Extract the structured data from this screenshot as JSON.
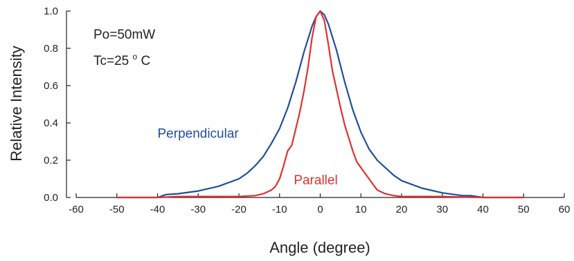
{
  "chart_data": {
    "type": "line",
    "title": "",
    "xlabel": "Angle (degree)",
    "ylabel": "Relative Intensity",
    "xlim": [
      -60,
      60
    ],
    "ylim": [
      0,
      1.0
    ],
    "xticks": [
      -60,
      -50,
      -40,
      -30,
      -20,
      -10,
      0,
      10,
      20,
      30,
      40,
      50,
      60
    ],
    "yticks": [
      "0.0",
      "0.2",
      "0.4",
      "0.6",
      "0.8",
      "1.0"
    ],
    "grid": false,
    "legend": "none",
    "annotations": {
      "power": "Po=50mW",
      "temp_prefix": "Tc=25",
      "temp_degree": "o",
      "temp_unit": "C"
    },
    "series": [
      {
        "name": "Perpendicular",
        "color": "#1f4e9c",
        "x": [
          -50,
          -45,
          -40,
          -38,
          -35,
          -30,
          -25,
          -20,
          -18,
          -16,
          -14,
          -12,
          -10,
          -8,
          -6,
          -4,
          -2,
          -1,
          0,
          1,
          2,
          4,
          6,
          8,
          10,
          12,
          14,
          16,
          18,
          20,
          25,
          30,
          35,
          37,
          40,
          45,
          50
        ],
        "y": [
          0.0,
          0.0,
          0.0,
          0.015,
          0.02,
          0.035,
          0.06,
          0.1,
          0.13,
          0.17,
          0.22,
          0.29,
          0.37,
          0.48,
          0.62,
          0.78,
          0.92,
          0.97,
          1.0,
          0.98,
          0.93,
          0.79,
          0.62,
          0.47,
          0.35,
          0.26,
          0.2,
          0.16,
          0.12,
          0.09,
          0.05,
          0.025,
          0.01,
          0.01,
          0.0,
          0.0,
          0.0
        ]
      },
      {
        "name": "Parallel",
        "color": "#e03030",
        "x": [
          -50,
          -40,
          -35,
          -30,
          -25,
          -20,
          -16,
          -14,
          -12,
          -11,
          -10,
          -9,
          -8,
          -7,
          -6,
          -5,
          -4,
          -3,
          -2,
          -1,
          0,
          1,
          2,
          3,
          4,
          5,
          6,
          7,
          8,
          9,
          10,
          11,
          12,
          13,
          14,
          16,
          18,
          20,
          25,
          30,
          40,
          50
        ],
        "y": [
          0.0,
          0.0,
          0.005,
          0.005,
          0.005,
          0.005,
          0.01,
          0.02,
          0.04,
          0.06,
          0.1,
          0.17,
          0.25,
          0.28,
          0.37,
          0.46,
          0.57,
          0.7,
          0.86,
          0.97,
          1.0,
          0.95,
          0.82,
          0.68,
          0.58,
          0.48,
          0.39,
          0.32,
          0.25,
          0.19,
          0.16,
          0.13,
          0.1,
          0.07,
          0.04,
          0.02,
          0.01,
          0.005,
          0.005,
          0.005,
          0.0,
          0.0
        ]
      }
    ],
    "series_labels": [
      {
        "name": "Perpendicular",
        "x": -40,
        "y": 0.32
      },
      {
        "name": "Parallel",
        "x": -6.5,
        "y": 0.07
      }
    ]
  }
}
